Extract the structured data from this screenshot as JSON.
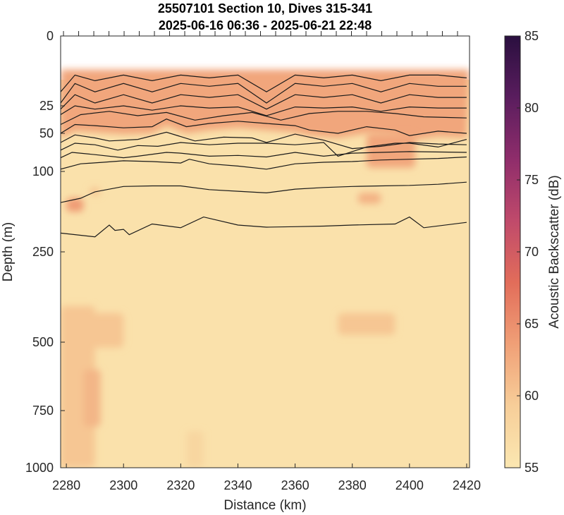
{
  "chart_data": {
    "type": "heatmap",
    "title_line1": "25507101 Section 10, Dives 315-341",
    "title_line2": "2025-06-16 06:36 - 2025-06-21 22:48",
    "xlabel": "Distance (km)",
    "ylabel": "Depth (m)",
    "colorbar_label": "Acoustic Backscatter (dB)",
    "xlim": [
      2278,
      2421
    ],
    "depth_range": [
      0,
      1000
    ],
    "depth_axis_scale": "stretched near surface (piecewise)",
    "x_ticks": [
      "2280",
      "2300",
      "2320",
      "2340",
      "2360",
      "2380",
      "2400",
      "2420"
    ],
    "y_ticks": [
      "0",
      "25",
      "50",
      "100",
      "250",
      "500",
      "750",
      "1000"
    ],
    "clim": [
      55,
      85
    ],
    "colorbar_ticks": [
      "55",
      "60",
      "65",
      "70",
      "75",
      "80",
      "85"
    ],
    "colormap": [
      "#fbe7b1",
      "#f7ce99",
      "#f0a077",
      "#e26d5a",
      "#c04a6b",
      "#8f2d6b",
      "#5a1d5e",
      "#2a0f3f"
    ],
    "no_data_above_depth": 12,
    "grid": false,
    "dive_markers_at_top": true,
    "surface_layer_backscatter_dB": 63,
    "deep_background_backscatter_dB": 56,
    "patches": [
      {
        "x": [
          2278,
          2290
        ],
        "depth": [
          400,
          1000
        ],
        "value": 60
      },
      {
        "x": [
          2286,
          2292
        ],
        "depth": [
          600,
          820
        ],
        "value": 61.5
      },
      {
        "x": [
          2278,
          2300
        ],
        "depth": [
          420,
          520
        ],
        "value": 60
      },
      {
        "x": [
          2280,
          2286
        ],
        "depth": [
          150,
          175
        ],
        "value": 64
      },
      {
        "x": [
          2288,
          2292
        ],
        "depth": [
          130,
          145
        ],
        "value": 60
      },
      {
        "x": [
          2375,
          2395
        ],
        "depth": [
          420,
          480
        ],
        "value": 60
      },
      {
        "x": [
          2382,
          2390
        ],
        "depth": [
          140,
          160
        ],
        "value": 62
      },
      {
        "x": [
          2385,
          2402
        ],
        "depth": [
          50,
          95
        ],
        "value": 63
      },
      {
        "x": [
          2322,
          2328
        ],
        "depth": [
          840,
          1000
        ],
        "value": 58
      }
    ],
    "contours": [
      {
        "x": [
          2278,
          2283,
          2290,
          2300,
          2310,
          2320,
          2330,
          2340,
          2350,
          2360,
          2370,
          2380,
          2390,
          2400,
          2410,
          2420
        ],
        "depth": [
          20,
          14,
          16,
          14,
          16,
          14,
          15,
          14,
          20,
          14,
          15,
          14,
          16,
          14,
          14,
          15
        ]
      },
      {
        "x": [
          2278,
          2283,
          2290,
          2300,
          2310,
          2320,
          2330,
          2340,
          2350,
          2360,
          2370,
          2380,
          2390,
          2400,
          2410,
          2420
        ],
        "depth": [
          24,
          17,
          20,
          17,
          20,
          17,
          18,
          17,
          24,
          17,
          18,
          17,
          20,
          17,
          18,
          18
        ]
      },
      {
        "x": [
          2278,
          2283,
          2290,
          2300,
          2310,
          2320,
          2330,
          2340,
          2350,
          2360,
          2370,
          2380,
          2390,
          2400,
          2410,
          2420
        ],
        "depth": [
          28,
          21,
          24,
          21,
          24,
          21,
          22,
          21,
          28,
          21,
          22,
          21,
          24,
          21,
          22,
          22
        ]
      },
      {
        "x": [
          2278,
          2283,
          2290,
          2300,
          2310,
          2320,
          2330,
          2340,
          2350,
          2360,
          2370,
          2380,
          2390,
          2400,
          2410,
          2420
        ],
        "depth": [
          33,
          25,
          28,
          25,
          29,
          25,
          27,
          26,
          34,
          26,
          27,
          26,
          30,
          26,
          27,
          27
        ]
      },
      {
        "x": [
          2278,
          2285,
          2295,
          2305,
          2315,
          2325,
          2335,
          2345,
          2355,
          2365,
          2375,
          2385,
          2395,
          2405,
          2420
        ],
        "depth": [
          42,
          33,
          30,
          34,
          31,
          38,
          34,
          31,
          38,
          32,
          30,
          30,
          32,
          35,
          36
        ]
      },
      {
        "x": [
          2278,
          2283,
          2290,
          2300,
          2310,
          2315,
          2322,
          2330,
          2340,
          2350,
          2360,
          2365,
          2375,
          2385,
          2395,
          2400,
          2410,
          2420
        ],
        "depth": [
          50,
          42,
          43,
          45,
          44,
          37,
          44,
          41,
          39,
          41,
          43,
          47,
          50,
          44,
          47,
          53,
          48,
          50
        ]
      },
      {
        "x": [
          2278,
          2283,
          2290,
          2295,
          2305,
          2315,
          2325,
          2335,
          2345,
          2350,
          2360,
          2370,
          2380,
          2390,
          2400,
          2410,
          2420
        ],
        "depth": [
          62,
          52,
          56,
          60,
          58,
          49,
          60,
          55,
          56,
          62,
          51,
          59,
          70,
          67,
          62,
          64,
          65
        ]
      },
      {
        "x": [
          2278,
          2283,
          2290,
          2298,
          2305,
          2312,
          2320,
          2330,
          2340,
          2350,
          2360,
          2370,
          2375,
          2385,
          2395,
          2400,
          2410,
          2420
        ],
        "depth": [
          72,
          63,
          65,
          72,
          66,
          67,
          62,
          65,
          63,
          63,
          65,
          62,
          80,
          68,
          63,
          63,
          68,
          58
        ]
      },
      {
        "x": [
          2278,
          2282,
          2290,
          2300,
          2305,
          2315,
          2320,
          2330,
          2340,
          2350,
          2360,
          2370,
          2380,
          2390,
          2400,
          2420
        ],
        "depth": [
          82,
          75,
          78,
          82,
          80,
          75,
          76,
          80,
          79,
          81,
          75,
          80,
          76,
          75,
          74,
          75
        ]
      },
      {
        "x": [
          2278,
          2285,
          2293,
          2300,
          2310,
          2320,
          2323,
          2330,
          2340,
          2350,
          2360,
          2370,
          2380,
          2390,
          2400,
          2410,
          2420
        ],
        "depth": [
          97,
          90,
          88,
          86,
          87,
          89,
          84,
          90,
          93,
          97,
          90,
          88,
          87,
          85,
          84,
          83,
          81
        ]
      },
      {
        "x": [
          2278,
          2285,
          2290,
          2300,
          2310,
          2320,
          2330,
          2340,
          2350,
          2360,
          2370,
          2380,
          2390,
          2400,
          2410,
          2420
        ],
        "depth": [
          158,
          150,
          138,
          128,
          127,
          127,
          134,
          137,
          140,
          133,
          130,
          128,
          127,
          126,
          124,
          120
        ]
      },
      {
        "x": [
          2278,
          2290,
          2295,
          2297,
          2300,
          2302,
          2310,
          2320,
          2328,
          2340,
          2350,
          2360,
          2370,
          2380,
          2395,
          2400,
          2405,
          2420
        ],
        "depth": [
          215,
          222,
          200,
          210,
          208,
          218,
          198,
          205,
          185,
          200,
          204,
          203,
          202,
          200,
          198,
          185,
          205,
          195
        ]
      }
    ]
  }
}
